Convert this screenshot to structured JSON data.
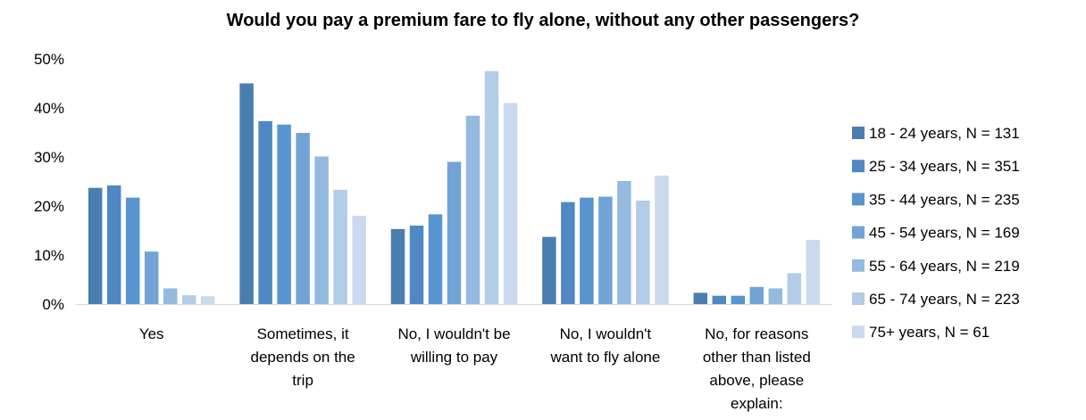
{
  "chart_data": {
    "type": "bar",
    "title": "Would you pay a premium fare to fly alone, without any other passengers?",
    "categories": [
      [
        "Yes"
      ],
      [
        "Sometimes, it",
        "depends on the",
        "trip"
      ],
      [
        "No, I wouldn't be",
        "willing to pay"
      ],
      [
        "No, I wouldn't",
        "want to fly alone"
      ],
      [
        "No, for reasons",
        "other than listed",
        "above, please",
        "explain:"
      ]
    ],
    "ylim": [
      0,
      50
    ],
    "yticks": [
      "0%",
      "10%",
      "20%",
      "30%",
      "40%",
      "50%"
    ],
    "grid": false,
    "legend_position": "right",
    "series": [
      {
        "name": "18 - 24 years, N = 131",
        "color": "#4a7eb0",
        "values": [
          23.7,
          45.0,
          15.3,
          13.7,
          2.3
        ]
      },
      {
        "name": "25 - 34 years, N = 351",
        "color": "#4f88c2",
        "values": [
          24.2,
          37.3,
          16.0,
          20.8,
          1.7
        ]
      },
      {
        "name": "35 - 44 years, N = 235",
        "color": "#5894cf",
        "values": [
          21.7,
          36.6,
          18.3,
          21.7,
          1.7
        ]
      },
      {
        "name": "45 - 54 years, N = 169",
        "color": "#71a3d7",
        "values": [
          10.7,
          34.9,
          29.0,
          21.9,
          3.5
        ]
      },
      {
        "name": "55 - 64 years, N = 219",
        "color": "#95badf",
        "values": [
          3.2,
          30.1,
          38.4,
          25.1,
          3.2
        ]
      },
      {
        "name": "65 - 74 years, N = 223",
        "color": "#b3cce7",
        "values": [
          1.8,
          23.3,
          47.5,
          21.1,
          6.3
        ]
      },
      {
        "name": "75+ years, N = 61",
        "color": "#cad9ee",
        "values": [
          1.6,
          18.0,
          41.0,
          26.2,
          13.1
        ]
      }
    ]
  }
}
